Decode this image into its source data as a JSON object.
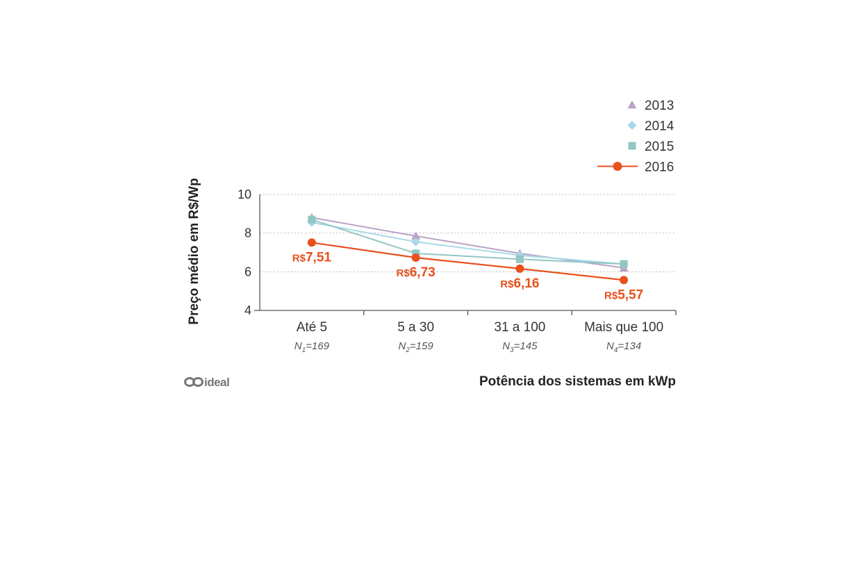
{
  "chart_data": {
    "type": "line",
    "categories": [
      "Até 5",
      "5 a 30",
      "31 a 100",
      "Mais que 100"
    ],
    "sample_sizes": [
      {
        "sub": "1",
        "value": "=169"
      },
      {
        "sub": "2",
        "value": "=159"
      },
      {
        "sub": "3",
        "value": "=145"
      },
      {
        "sub": "4",
        "value": "=134"
      }
    ],
    "series": [
      {
        "name": "2013",
        "values": [
          8.8,
          7.85,
          6.95,
          6.2
        ],
        "color": "#b9a3c6",
        "marker": "triangle",
        "legend_line": false
      },
      {
        "name": "2014",
        "values": [
          8.55,
          7.55,
          6.85,
          6.4
        ],
        "color": "#a8d8e8",
        "marker": "diamond",
        "legend_line": false
      },
      {
        "name": "2015",
        "values": [
          8.7,
          6.95,
          6.65,
          6.4
        ],
        "color": "#92c6c3",
        "marker": "square",
        "legend_line": false
      },
      {
        "name": "2016",
        "values": [
          7.51,
          6.73,
          6.16,
          5.57
        ],
        "color": "#e8501c",
        "marker": "circle",
        "legend_line": true
      }
    ],
    "data_labels": [
      {
        "prefix": "R$",
        "value": "7,51"
      },
      {
        "prefix": "R$",
        "value": "6,73"
      },
      {
        "prefix": "R$",
        "value": "6,16"
      },
      {
        "prefix": "R$",
        "value": "5,57"
      }
    ],
    "ylabel": "Preço médio em R$/Wp",
    "xlabel": "Potência dos sistemas em kWp",
    "ylim": [
      4,
      10
    ],
    "yticks": [
      4,
      6,
      8,
      10
    ],
    "grid": true,
    "legend_position": "top-right"
  },
  "logo": {
    "text": "ideal",
    "icon": "infinity-logo-icon"
  }
}
